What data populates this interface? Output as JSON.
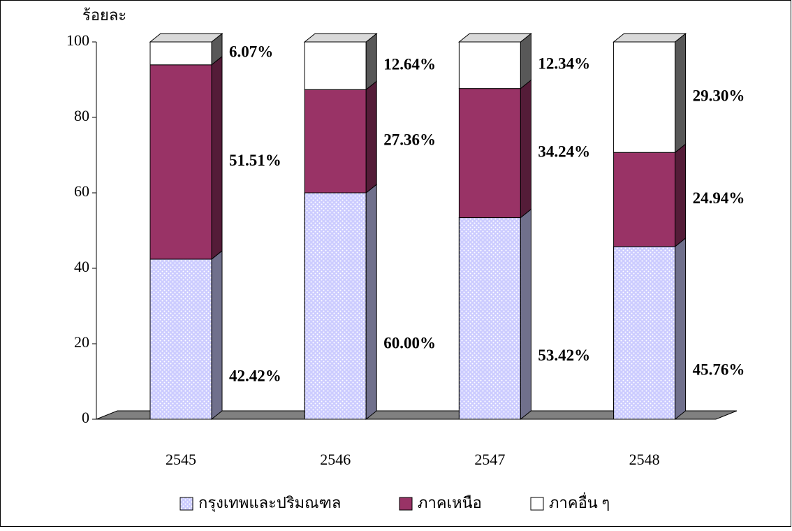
{
  "chart_data": {
    "type": "bar3d_stacked",
    "y_label": "ร้อยละ",
    "categories": [
      "2545",
      "2546",
      "2547",
      "2548"
    ],
    "series": [
      {
        "name": "กรุงเทพและปริมณฑล",
        "color": "#ccccff",
        "values": [
          42.42,
          60.0,
          53.42,
          45.76
        ],
        "value_labels": [
          "42.42%",
          "60.00%",
          "53.42%",
          "45.76%"
        ]
      },
      {
        "name": "ภาคเหนือ",
        "color": "#993366",
        "values": [
          51.51,
          27.36,
          34.24,
          24.94
        ],
        "value_labels": [
          "51.51%",
          "27.36%",
          "34.24%",
          "24.94%"
        ]
      },
      {
        "name": "ภาคอื่น ๆ",
        "color": "#ffffff",
        "values": [
          6.07,
          12.64,
          12.34,
          29.3
        ],
        "value_labels": [
          "6.07%",
          "12.64%",
          "12.34%",
          "29.30%"
        ]
      }
    ],
    "ylim": [
      0,
      100
    ],
    "yticks": [
      0,
      20,
      40,
      60,
      80,
      100
    ],
    "legend": "bottom"
  }
}
